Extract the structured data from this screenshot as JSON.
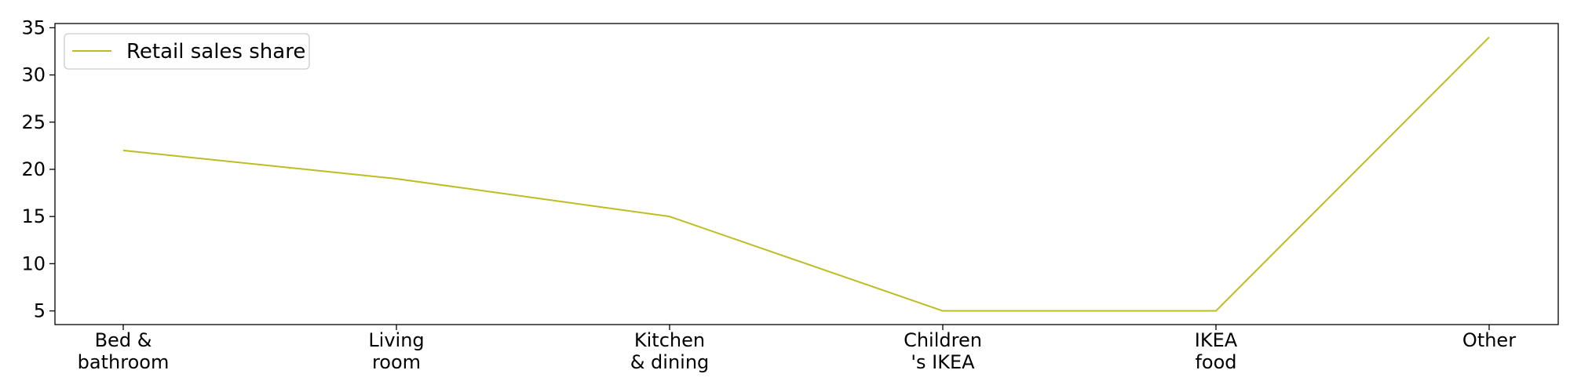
{
  "chart_data": {
    "type": "line",
    "categories": [
      "Bed &\nbathroom",
      "Living\nroom",
      "Kitchen\n& dining",
      "Children\n's IKEA",
      "IKEA\nfood",
      "Other"
    ],
    "series": [
      {
        "name": "Retail sales share",
        "values": [
          22,
          19,
          15,
          5,
          5,
          34
        ],
        "color": "#bcbd22"
      }
    ],
    "yticks": [
      5,
      10,
      15,
      20,
      25,
      30,
      35
    ],
    "ylim": [
      3.55,
      35.45
    ],
    "title": "",
    "xlabel": "",
    "ylabel": "",
    "grid": false,
    "legend": "top-left"
  }
}
